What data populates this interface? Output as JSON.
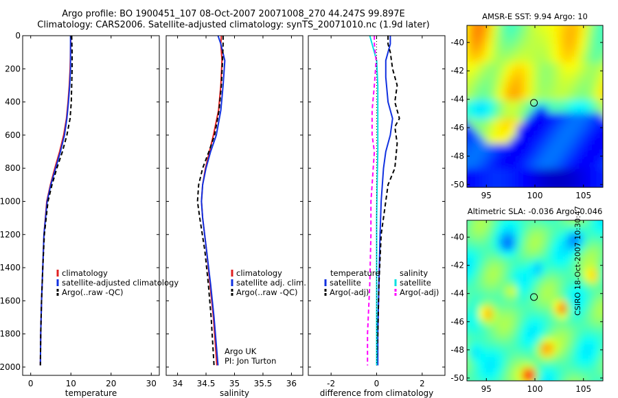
{
  "header": {
    "line1": "Argo profile: BO 1900451_107 08-Oct-2007 20071008_270 44.247S 99.897E",
    "line2": "Climatology: CARS2006. Satellite-adjusted climatology: synTS_20071010.nc (1.9d later)"
  },
  "stamp": "CSIRO 18-Oct-2007 10:30:47",
  "colors": {
    "climatology": "#e02020",
    "satellite": "#1030e0",
    "argo": "#000000",
    "sat_diff": "#00e0e0",
    "argo_sal_diff": "#ff00ff"
  },
  "chart_data": [
    {
      "type": "line",
      "panel": "temperature",
      "xlabel": "temperature",
      "ylabel": "",
      "xlim": [
        -2,
        32
      ],
      "ylim": [
        2050,
        0
      ],
      "xticks": [
        0,
        10,
        20,
        30
      ],
      "yticks": [
        0,
        200,
        400,
        600,
        800,
        1000,
        1200,
        1400,
        1600,
        1800,
        2000
      ],
      "legend": [
        "climatology",
        "satellite-adjusted climatology",
        "Argo(..raw -QC)"
      ],
      "legend_position": "lower-left",
      "series": [
        {
          "name": "climatology",
          "style": "solid",
          "color": "#e02020",
          "depth": [
            0,
            100,
            200,
            300,
            400,
            500,
            600,
            700,
            800,
            900,
            1000,
            1200,
            1400,
            1600,
            1800,
            1990
          ],
          "values": [
            10.0,
            9.9,
            9.8,
            9.6,
            9.3,
            8.9,
            8.2,
            7.2,
            6.0,
            4.9,
            4.0,
            3.3,
            3.0,
            2.7,
            2.5,
            2.4
          ]
        },
        {
          "name": "satellite-adjusted climatology",
          "style": "solid",
          "color": "#1030e0",
          "depth": [
            0,
            100,
            200,
            300,
            400,
            500,
            600,
            700,
            800,
            900,
            1000,
            1200,
            1400,
            1600,
            1800,
            1990
          ],
          "values": [
            9.9,
            9.9,
            9.9,
            9.7,
            9.4,
            9.0,
            8.4,
            7.4,
            6.2,
            5.0,
            4.1,
            3.3,
            3.0,
            2.7,
            2.5,
            2.4
          ]
        },
        {
          "name": "Argo(..raw -QC)",
          "style": "dashed",
          "color": "#000000",
          "depth": [
            0,
            100,
            200,
            300,
            400,
            500,
            600,
            700,
            800,
            900,
            1000,
            1200,
            1400,
            1600,
            1800,
            1990
          ],
          "values": [
            10.2,
            10.3,
            10.3,
            10.2,
            10.1,
            9.8,
            9.0,
            7.9,
            6.5,
            5.3,
            4.3,
            3.4,
            3.0,
            2.7,
            2.5,
            2.4
          ]
        }
      ]
    },
    {
      "type": "line",
      "panel": "salinity",
      "xlabel": "salinity",
      "xlim": [
        33.8,
        36.2
      ],
      "ylim": [
        2050,
        0
      ],
      "xticks": [
        34,
        34.5,
        35,
        35.5,
        36
      ],
      "legend": [
        "climatology",
        "satellite adj. clim.",
        "Argo(..raw -QC)"
      ],
      "legend_position": "lower-right",
      "annotation": [
        "Argo UK",
        "PI: Jon Turton"
      ],
      "series": [
        {
          "name": "climatology",
          "style": "solid",
          "color": "#e02020",
          "depth": [
            0,
            50,
            150,
            300,
            450,
            600,
            700,
            800,
            900,
            1000,
            1100,
            1300,
            1500,
            1700,
            1990
          ],
          "values": [
            34.77,
            34.76,
            34.78,
            34.76,
            34.72,
            34.63,
            34.56,
            34.49,
            34.44,
            34.42,
            34.44,
            34.51,
            34.57,
            34.63,
            34.69
          ]
        },
        {
          "name": "satellite adj. clim.",
          "style": "solid",
          "color": "#1030e0",
          "depth": [
            0,
            50,
            150,
            300,
            450,
            600,
            700,
            800,
            900,
            1000,
            1100,
            1300,
            1500,
            1700,
            1990
          ],
          "values": [
            34.71,
            34.76,
            34.83,
            34.8,
            34.76,
            34.68,
            34.58,
            34.5,
            34.44,
            34.42,
            34.44,
            34.51,
            34.58,
            34.64,
            34.71
          ]
        },
        {
          "name": "Argo(..raw -QC)",
          "style": "dashed",
          "color": "#000000",
          "depth": [
            0,
            50,
            150,
            300,
            450,
            600,
            700,
            800,
            900,
            1000,
            1100,
            1300,
            1500,
            1700,
            1990
          ],
          "values": [
            34.8,
            34.8,
            34.79,
            34.77,
            34.73,
            34.65,
            34.55,
            34.44,
            34.37,
            34.35,
            34.39,
            34.48,
            34.54,
            34.59,
            34.64
          ]
        }
      ]
    },
    {
      "type": "line",
      "panel": "difference",
      "xlabel": "difference from climatology",
      "xlim": [
        -3,
        3
      ],
      "ylim": [
        2050,
        0
      ],
      "xticks": [
        -2,
        0,
        2
      ],
      "legend_columns": [
        {
          "heading": "temperature",
          "entries": [
            "satellite",
            "Argo(-adj)"
          ]
        },
        {
          "heading": "salinity",
          "entries": [
            "satellite",
            "Argo(-adj)"
          ]
        }
      ],
      "legend_position": "lower-center",
      "series": [
        {
          "name": "temperature satellite",
          "style": "solid",
          "color": "#1030e0",
          "depth": [
            0,
            50,
            150,
            250,
            400,
            500,
            600,
            700,
            800,
            1000,
            1200,
            1500,
            1800,
            1990
          ],
          "values": [
            0.6,
            0.6,
            0.4,
            0.4,
            0.5,
            0.7,
            0.6,
            0.4,
            0.3,
            0.2,
            0.15,
            0.1,
            0.05,
            0.05
          ]
        },
        {
          "name": "temperature Argo(-adj)",
          "style": "dashed",
          "color": "#000000",
          "depth": [
            0,
            50,
            100,
            200,
            300,
            400,
            500,
            550,
            650,
            800,
            900,
            1000,
            1200,
            1500,
            1800,
            1990
          ],
          "values": [
            0.5,
            0.5,
            0.6,
            0.7,
            0.9,
            0.8,
            1.0,
            0.8,
            0.9,
            0.8,
            0.5,
            0.4,
            0.2,
            0.1,
            0.05,
            0.0
          ]
        },
        {
          "name": "salinity satellite",
          "style": "solid",
          "color": "#00e0e0",
          "depth": [
            0,
            50,
            150,
            300,
            500,
            700,
            900,
            1100,
            1400,
            1700,
            1990
          ],
          "values": [
            -0.3,
            -0.2,
            0.0,
            0.05,
            0.05,
            0.05,
            0.02,
            0.0,
            0.0,
            0.0,
            0.0
          ]
        },
        {
          "name": "salinity Argo(-adj)",
          "style": "dashed",
          "color": "#ff00ff",
          "depth": [
            0,
            50,
            150,
            300,
            450,
            600,
            700,
            800,
            900,
            1000,
            1200,
            1500,
            1800,
            1990
          ],
          "values": [
            -0.1,
            -0.1,
            -0.02,
            -0.1,
            -0.2,
            -0.2,
            -0.1,
            -0.15,
            -0.2,
            -0.25,
            -0.25,
            -0.3,
            -0.4,
            -0.4
          ]
        },
        {
          "name": "zero",
          "style": "dotted",
          "color": "#000000",
          "depth": [
            0,
            1990
          ],
          "values": [
            0,
            0
          ]
        }
      ]
    },
    {
      "type": "heatmap",
      "title": "AMSR-E SST: 9.94 Argo: 10",
      "xlim": [
        93,
        107
      ],
      "ylim": [
        -50.2,
        -38.8
      ],
      "xticks": [
        95,
        100,
        105
      ],
      "yticks": [
        -40,
        -42,
        -44,
        -46,
        -48,
        -50
      ],
      "marker": {
        "x": 99.9,
        "y": -44.25
      }
    },
    {
      "type": "heatmap",
      "title": "Altimetric SLA: -0.036 Argo: 0.046",
      "xlim": [
        93,
        107
      ],
      "ylim": [
        -50.2,
        -38.8
      ],
      "xticks": [
        95,
        100,
        105
      ],
      "yticks": [
        -40,
        -42,
        -44,
        -46,
        -48,
        -50
      ],
      "marker": {
        "x": 99.9,
        "y": -44.25
      }
    }
  ]
}
